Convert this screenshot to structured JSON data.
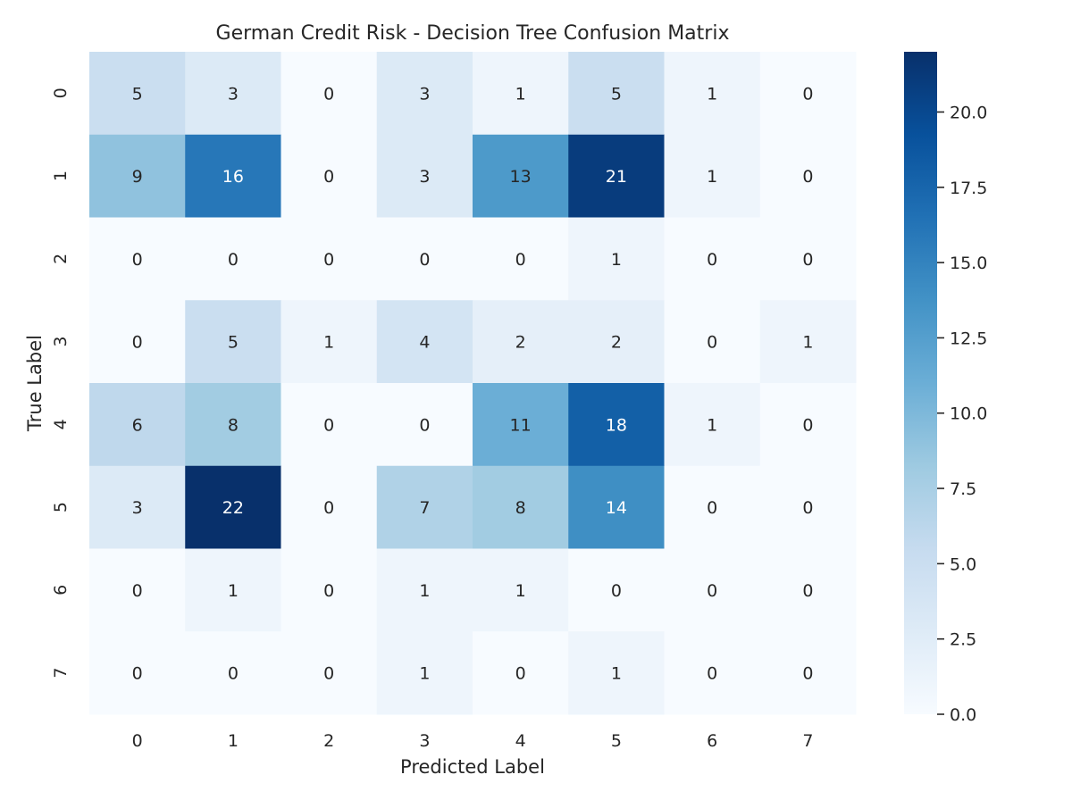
{
  "chart_data": {
    "type": "heatmap",
    "title": "German Credit Risk - Decision Tree Confusion Matrix",
    "xlabel": "Predicted Label",
    "ylabel": "True Label",
    "x_categories": [
      "0",
      "1",
      "2",
      "3",
      "4",
      "5",
      "6",
      "7"
    ],
    "y_categories": [
      "0",
      "1",
      "2",
      "3",
      "4",
      "5",
      "6",
      "7"
    ],
    "values": [
      [
        5,
        3,
        0,
        3,
        1,
        5,
        1,
        0
      ],
      [
        9,
        16,
        0,
        3,
        13,
        21,
        1,
        0
      ],
      [
        0,
        0,
        0,
        0,
        0,
        1,
        0,
        0
      ],
      [
        0,
        5,
        1,
        4,
        2,
        2,
        0,
        1
      ],
      [
        6,
        8,
        0,
        0,
        11,
        18,
        1,
        0
      ],
      [
        3,
        22,
        0,
        7,
        8,
        14,
        0,
        0
      ],
      [
        0,
        1,
        0,
        1,
        1,
        0,
        0,
        0
      ],
      [
        0,
        0,
        0,
        1,
        0,
        1,
        0,
        0
      ]
    ],
    "colormap": "Blues",
    "vmin": 0,
    "vmax": 22,
    "colorbar": {
      "ticks": [
        0.0,
        2.5,
        5.0,
        7.5,
        10.0,
        12.5,
        15.0,
        17.5,
        20.0
      ],
      "tick_labels": [
        "0.0",
        "2.5",
        "5.0",
        "7.5",
        "10.0",
        "12.5",
        "15.0",
        "17.5",
        "20.0"
      ]
    },
    "annotations": true,
    "grid": false
  }
}
